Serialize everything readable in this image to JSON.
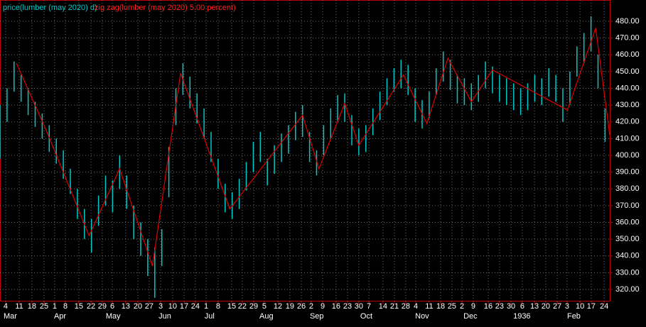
{
  "chart_data": {
    "type": "ohlc",
    "series": [
      {
        "name": "price(lumber (may 2020) d)",
        "color": "#00c8c8",
        "x": [
          0,
          3,
          6,
          9,
          12,
          15,
          18,
          21,
          24,
          27,
          30,
          33,
          36,
          39,
          42,
          45,
          48,
          51,
          54,
          57,
          60,
          63,
          66,
          69,
          72,
          75,
          78,
          81,
          84,
          87,
          90,
          93,
          96,
          99,
          102,
          105,
          108,
          111,
          114,
          117,
          120,
          123,
          126,
          129,
          132,
          135,
          138,
          141,
          144,
          147,
          150,
          153,
          156,
          159,
          162,
          165,
          168,
          171,
          174,
          177,
          180,
          183,
          186,
          189,
          192,
          195,
          198,
          201,
          204,
          207,
          210,
          213,
          216,
          219,
          222,
          225,
          228,
          231,
          234,
          237,
          240,
          243,
          246,
          249,
          252,
          255,
          258
        ],
        "high": [
          430,
          440,
          456,
          448,
          440,
          432,
          425,
          418,
          410,
          403,
          392,
          380,
          368,
          362,
          376,
          388,
          385,
          400,
          388,
          370,
          360,
          350,
          345,
          356,
          405,
          440,
          455,
          447,
          437,
          428,
          414,
          398,
          383,
          378,
          386,
          396,
          408,
          414,
          398,
          406,
          413,
          418,
          426,
          430,
          414,
          403,
          418,
          428,
          436,
          437,
          424,
          416,
          418,
          428,
          438,
          446,
          452,
          457,
          454,
          440,
          433,
          438,
          452,
          462,
          457,
          448,
          446,
          443,
          448,
          456,
          453,
          448,
          446,
          443,
          440,
          443,
          448,
          446,
          452,
          448,
          440,
          450,
          465,
          473,
          483,
          460,
          428
        ],
        "low": [
          398,
          420,
          438,
          432,
          424,
          417,
          410,
          402,
          395,
          386,
          377,
          362,
          350,
          342,
          358,
          370,
          366,
          380,
          368,
          350,
          340,
          328,
          315,
          334,
          375,
          418,
          436,
          428,
          419,
          410,
          396,
          380,
          366,
          362,
          368,
          379,
          390,
          396,
          382,
          389,
          396,
          401,
          409,
          411,
          396,
          388,
          400,
          410,
          420,
          420,
          406,
          400,
          402,
          412,
          421,
          430,
          438,
          440,
          436,
          420,
          416,
          422,
          436,
          444,
          439,
          431,
          430,
          427,
          432,
          440,
          437,
          432,
          430,
          427,
          424,
          427,
          432,
          430,
          435,
          432,
          420,
          430,
          447,
          455,
          462,
          440,
          408
        ]
      },
      {
        "name": "zig zag(lumber (may 2020) 5.00 percent)",
        "color": "#e00000",
        "x": [
          7,
          20,
          38,
          51,
          65,
          77,
          98,
          129,
          136,
          147,
          153,
          172,
          182,
          191,
          201,
          210,
          242,
          254,
          260
        ],
        "values": [
          455,
          414,
          352,
          392,
          334,
          449,
          368,
          424,
          392,
          431,
          406,
          448,
          419,
          458,
          432,
          451,
          427,
          476,
          412
        ]
      }
    ],
    "xlim": [
      0,
      260
    ],
    "ylim": [
      312.8,
      492.7
    ],
    "yticks": [
      {
        "value": 320,
        "label": "320.00"
      },
      {
        "value": 330,
        "label": "330.00"
      },
      {
        "value": 340,
        "label": "340.00"
      },
      {
        "value": 350,
        "label": "350.00"
      },
      {
        "value": 360,
        "label": "360.00"
      },
      {
        "value": 370,
        "label": "370.00"
      },
      {
        "value": 380,
        "label": "380.00"
      },
      {
        "value": 390,
        "label": "390.00"
      },
      {
        "value": 400,
        "label": "400.00"
      },
      {
        "value": 410,
        "label": "410.00"
      },
      {
        "value": 420,
        "label": "420.00"
      },
      {
        "value": 430,
        "label": "430.00"
      },
      {
        "value": 440,
        "label": "440.00"
      },
      {
        "value": 450,
        "label": "450.00"
      },
      {
        "value": 460,
        "label": "460.00"
      },
      {
        "value": 470,
        "label": "470.00"
      },
      {
        "value": 480,
        "label": "480.00"
      }
    ],
    "xticks": [
      {
        "value": 2.4,
        "label": "4"
      },
      {
        "value": 8.2,
        "label": "11"
      },
      {
        "value": 13.6,
        "label": "18"
      },
      {
        "value": 18.8,
        "label": "25"
      },
      {
        "value": 23.3,
        "label": "1"
      },
      {
        "value": 27.9,
        "label": "8"
      },
      {
        "value": 33.6,
        "label": "15"
      },
      {
        "value": 38.8,
        "label": "22"
      },
      {
        "value": 43.6,
        "label": "29"
      },
      {
        "value": 47.9,
        "label": "6"
      },
      {
        "value": 53.6,
        "label": "13"
      },
      {
        "value": 58.8,
        "label": "20"
      },
      {
        "value": 63.6,
        "label": "27"
      },
      {
        "value": 68.5,
        "label": "3"
      },
      {
        "value": 73.6,
        "label": "10"
      },
      {
        "value": 78.5,
        "label": "17"
      },
      {
        "value": 83.3,
        "label": "24"
      },
      {
        "value": 87.9,
        "label": "1"
      },
      {
        "value": 93,
        "label": "8"
      },
      {
        "value": 98.8,
        "label": "15"
      },
      {
        "value": 103.3,
        "label": "22"
      },
      {
        "value": 108.2,
        "label": "29"
      },
      {
        "value": 112.7,
        "label": "5"
      },
      {
        "value": 118.5,
        "label": "12"
      },
      {
        "value": 123.6,
        "label": "19"
      },
      {
        "value": 128.5,
        "label": "26"
      },
      {
        "value": 132.7,
        "label": "2"
      },
      {
        "value": 137.6,
        "label": "9"
      },
      {
        "value": 143.3,
        "label": "16"
      },
      {
        "value": 148.2,
        "label": "23"
      },
      {
        "value": 153,
        "label": "30"
      },
      {
        "value": 157.3,
        "label": "7"
      },
      {
        "value": 163.3,
        "label": "14"
      },
      {
        "value": 168.2,
        "label": "21"
      },
      {
        "value": 173,
        "label": "28"
      },
      {
        "value": 177.3,
        "label": "4"
      },
      {
        "value": 183,
        "label": "11"
      },
      {
        "value": 187.9,
        "label": "18"
      },
      {
        "value": 192.7,
        "label": "25"
      },
      {
        "value": 197,
        "label": "2"
      },
      {
        "value": 201.8,
        "label": "9"
      },
      {
        "value": 208.2,
        "label": "16"
      },
      {
        "value": 213,
        "label": "23"
      },
      {
        "value": 217.9,
        "label": "30"
      },
      {
        "value": 222.7,
        "label": "6"
      },
      {
        "value": 227.9,
        "label": "13"
      },
      {
        "value": 232.7,
        "label": "20"
      },
      {
        "value": 237.6,
        "label": "27"
      },
      {
        "value": 241.8,
        "label": "3"
      },
      {
        "value": 247.3,
        "label": "10"
      },
      {
        "value": 252.1,
        "label": "17"
      },
      {
        "value": 257.6,
        "label": "24"
      }
    ],
    "month_labels": [
      {
        "value": 0.3,
        "label": "Mar"
      },
      {
        "value": 21.8,
        "label": "Apr"
      },
      {
        "value": 43.9,
        "label": "May"
      },
      {
        "value": 66.4,
        "label": "Jun"
      },
      {
        "value": 86,
        "label": "Jul"
      },
      {
        "value": 109.4,
        "label": "Aug"
      },
      {
        "value": 130.9,
        "label": "Sep"
      },
      {
        "value": 152.4,
        "label": "Oct"
      },
      {
        "value": 175.8,
        "label": "Nov"
      },
      {
        "value": 196.4,
        "label": "Dec"
      },
      {
        "value": 217.6,
        "label": "1936"
      },
      {
        "value": 240.6,
        "label": "Feb"
      }
    ],
    "grid": true
  }
}
